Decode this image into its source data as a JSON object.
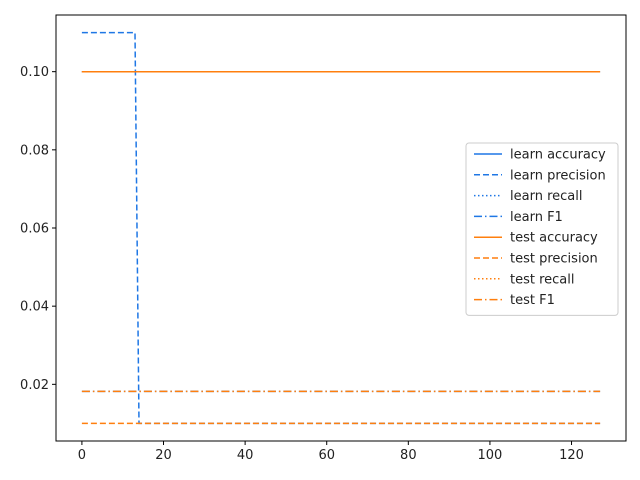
{
  "chart_data": {
    "type": "line",
    "title": "",
    "xlabel": "",
    "ylabel": "",
    "xlim": [
      -6.35,
      133.35
    ],
    "ylim": [
      0.0055,
      0.1145
    ],
    "xticks": [
      0,
      20,
      40,
      60,
      80,
      100,
      120
    ],
    "yticks": [
      0.02,
      0.04,
      0.06,
      0.08,
      0.1
    ],
    "ytick_labels": [
      "0.02",
      "0.04",
      "0.06",
      "0.08",
      "0.10"
    ],
    "grid": false,
    "legend_position": "center-right",
    "colors": {
      "learn": "#1f77e5",
      "test": "#ff7f0e"
    },
    "series": [
      {
        "name": "learn accuracy",
        "color": "#1f77e5",
        "style": "solid",
        "x": [
          0,
          127
        ],
        "y": [
          0.1,
          0.1
        ]
      },
      {
        "name": "learn precision",
        "color": "#1f77e5",
        "style": "dashed",
        "x": [
          0,
          13,
          14,
          127
        ],
        "y": [
          0.11,
          0.11,
          0.01,
          0.01
        ]
      },
      {
        "name": "learn recall",
        "color": "#1f77e5",
        "style": "dotted",
        "x": [
          0,
          127
        ],
        "y": [
          0.1,
          0.1
        ]
      },
      {
        "name": "learn F1",
        "color": "#1f77e5",
        "style": "dashdot",
        "x": [
          0,
          127
        ],
        "y": [
          0.0182,
          0.0182
        ]
      },
      {
        "name": "test accuracy",
        "color": "#ff7f0e",
        "style": "solid",
        "x": [
          0,
          127
        ],
        "y": [
          0.1,
          0.1
        ]
      },
      {
        "name": "test precision",
        "color": "#ff7f0e",
        "style": "dashed",
        "x": [
          0,
          127
        ],
        "y": [
          0.01,
          0.01
        ]
      },
      {
        "name": "test recall",
        "color": "#ff7f0e",
        "style": "dotted",
        "x": [
          0,
          127
        ],
        "y": [
          0.1,
          0.1
        ]
      },
      {
        "name": "test F1",
        "color": "#ff7f0e",
        "style": "dashdot",
        "x": [
          0,
          127
        ],
        "y": [
          0.0182,
          0.0182
        ]
      }
    ]
  }
}
